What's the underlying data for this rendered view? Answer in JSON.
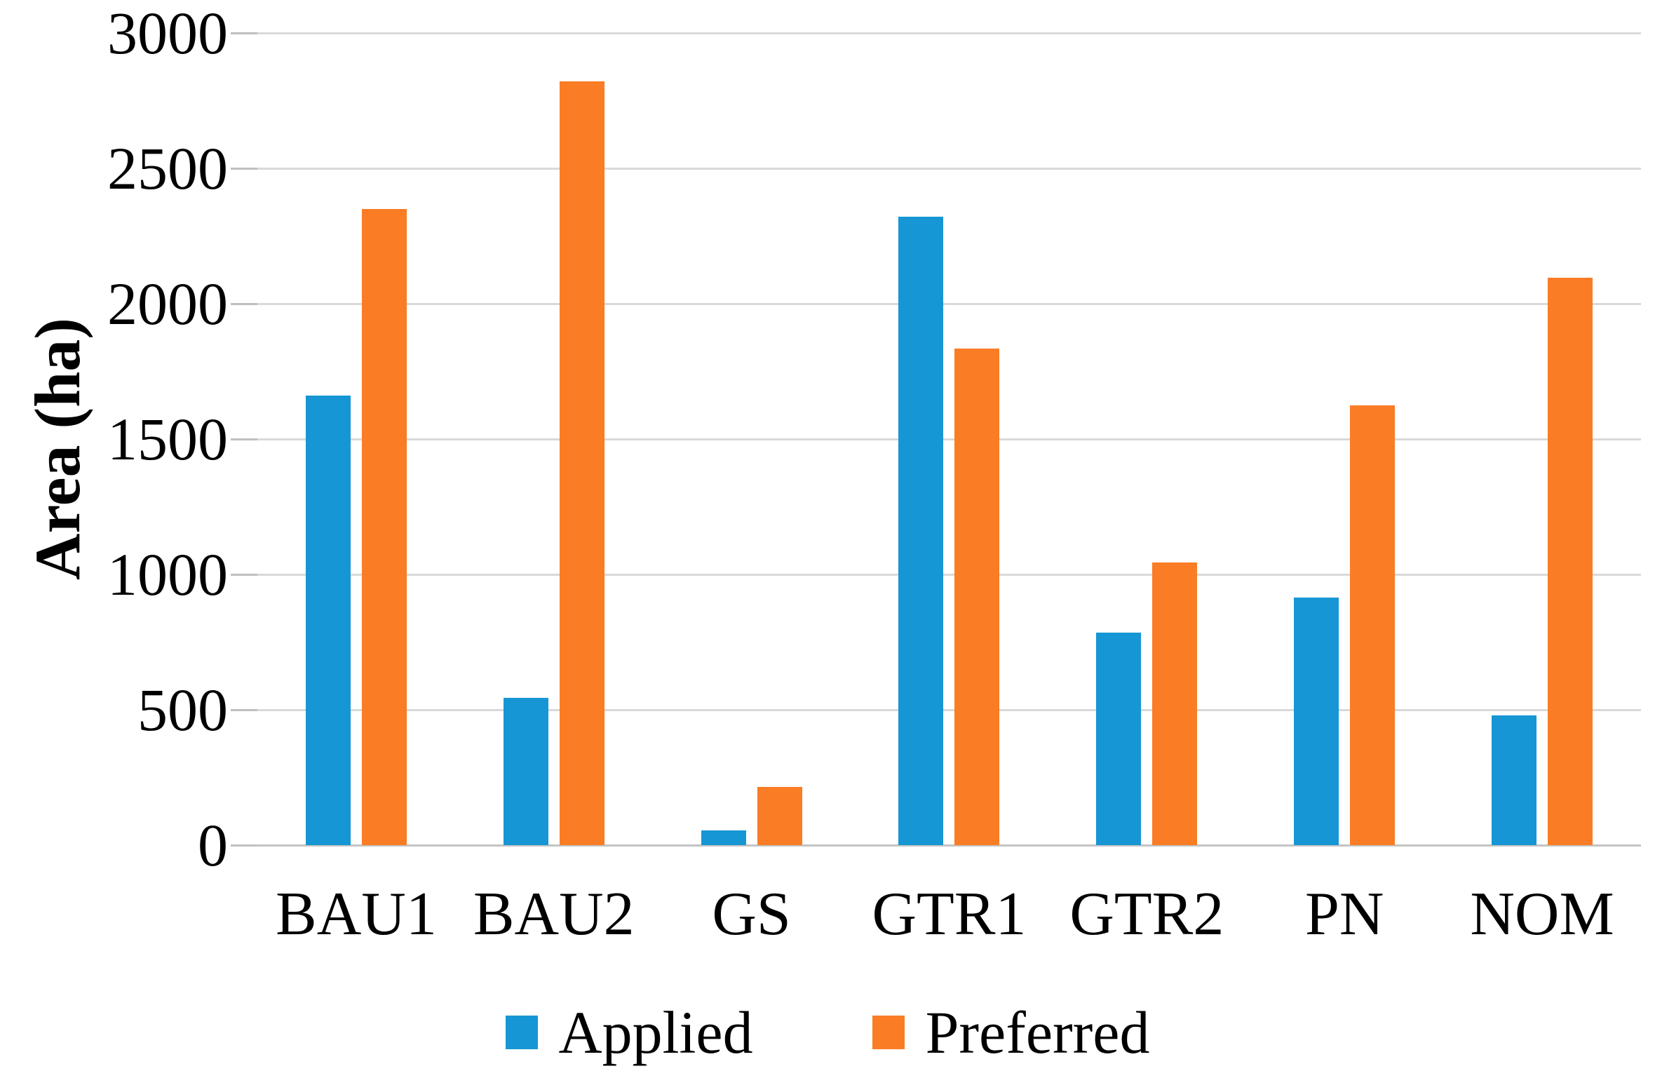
{
  "chart_data": {
    "type": "bar",
    "title": "",
    "xlabel": "",
    "ylabel": "Area (ha)",
    "categories": [
      "BAU1",
      "BAU2",
      "GS",
      "GTR1",
      "GTR2",
      "PN",
      "NOM"
    ],
    "series": [
      {
        "name": "Applied",
        "color": "#1696D4",
        "values": [
          1660,
          545,
          55,
          2320,
          785,
          915,
          480
        ]
      },
      {
        "name": "Preferred",
        "color": "#FA7C24",
        "values": [
          2350,
          2820,
          215,
          1835,
          1045,
          1625,
          2095
        ]
      }
    ],
    "ylim": [
      0,
      3000
    ],
    "ytick_step": 500,
    "ytick_labels": [
      "3000",
      "2500",
      "2000",
      "1500",
      "1000",
      "500",
      "0"
    ],
    "grid": "horizontal",
    "gridline_color": "#D9D9D9",
    "axis_line_color": "#C4C4C4",
    "tick_color": "#BFBFBF",
    "background": "#FFFFFF",
    "legend_position": "bottom"
  }
}
